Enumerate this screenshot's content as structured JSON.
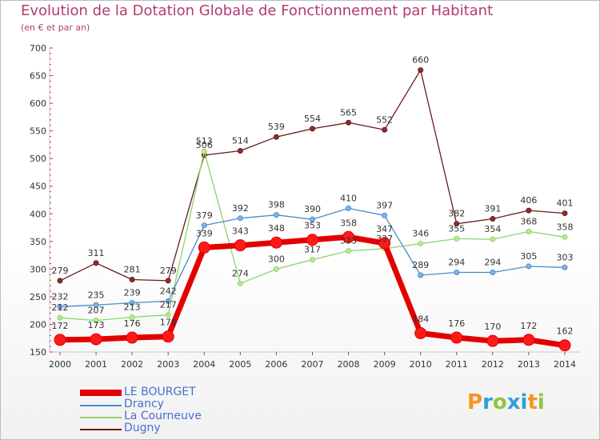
{
  "header": {
    "title": "Evolution de la Dotation Globale de Fonctionnement par Habitant",
    "subtitle": "(en € et par an)"
  },
  "brand": {
    "letters": [
      "P",
      "r",
      "o",
      "x",
      "i",
      "t",
      "i"
    ],
    "colors": [
      "#f7941d",
      "#2e9fd9",
      "#8dc63f",
      "#2e9fd9",
      "#2e9fd9",
      "#f7941d",
      "#8dc63f"
    ]
  },
  "chart_data": {
    "type": "line",
    "title": "Evolution de la Dotation Globale de Fonctionnement par Habitant",
    "subtitle": "(en € et par an)",
    "xlabel": "",
    "ylabel": "",
    "x": [
      "2000",
      "2001",
      "2002",
      "2003",
      "2004",
      "2005",
      "2006",
      "2007",
      "2008",
      "2009",
      "2010",
      "2011",
      "2012",
      "2013",
      "2014"
    ],
    "yticks": [
      "700",
      "650",
      "600",
      "550",
      "500",
      "450",
      "400",
      "350",
      "300",
      "250",
      "200",
      "150"
    ],
    "ylim": [
      150,
      700
    ],
    "grid": false,
    "legend_position": "bottom-left",
    "series": [
      {
        "name": "LE BOURGET",
        "color": "#e30000",
        "values": [
          172,
          173,
          176,
          178,
          339,
          343,
          348,
          353,
          358,
          347,
          184,
          176,
          170,
          172,
          162
        ]
      },
      {
        "name": "Drancy",
        "color": "#4a8ccc",
        "values": [
          232,
          235,
          239,
          242,
          379,
          392,
          398,
          390,
          410,
          397,
          289,
          294,
          294,
          305,
          303
        ]
      },
      {
        "name": "La Courneuve",
        "color": "#8ed46a",
        "values": [
          212,
          207,
          213,
          217,
          513,
          274,
          300,
          317,
          333,
          337,
          346,
          355,
          354,
          368,
          358
        ]
      },
      {
        "name": "Dugny",
        "color": "#6b1a1a",
        "values": [
          279,
          311,
          281,
          279,
          506,
          514,
          539,
          554,
          565,
          552,
          660,
          382,
          391,
          406,
          401
        ]
      }
    ]
  }
}
